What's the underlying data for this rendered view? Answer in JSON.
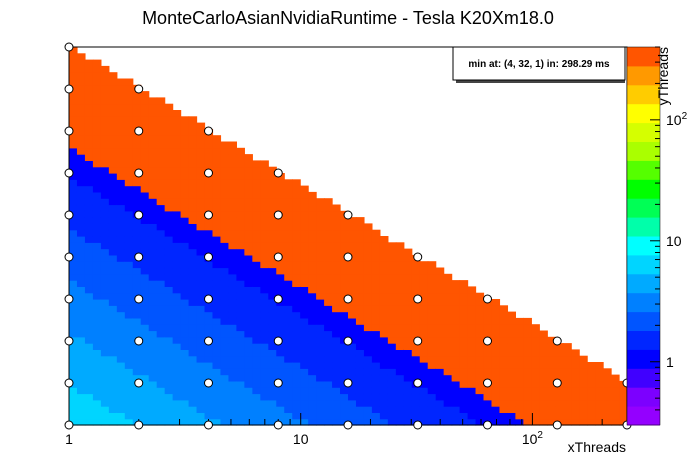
{
  "chart_data": {
    "type": "heatmap",
    "title": "MonteCarloAsianNvidiaRuntime - Tesla K20Xm18.0",
    "xlabel": "xThreads",
    "ylabel": "yThreads",
    "zlabel": "",
    "x_log_scale": true,
    "y_log_scale": true,
    "z_log_scale": true,
    "x_values": [
      1,
      2,
      4,
      8,
      16,
      32,
      64,
      128,
      256
    ],
    "y_values": [
      1,
      2,
      4,
      8,
      16,
      32,
      64,
      128,
      256,
      512
    ],
    "constraint": "xThreads * yThreads <= 512",
    "x_ticks": [
      {
        "value": 1,
        "label": "1"
      },
      {
        "value": 10,
        "label": "10"
      },
      {
        "value": 100,
        "base": "10",
        "exp": "2"
      }
    ],
    "z_ticks": [
      {
        "value": 1,
        "label": "1"
      },
      {
        "value": 10,
        "label": "10"
      },
      {
        "value": 100,
        "base": "10",
        "exp": "2"
      }
    ],
    "zlim": [
      0.3,
      400
    ],
    "annotation": "min at: (4, 32, 1) in: 298.29 ms",
    "legend_position": "top-right",
    "grid": false
  }
}
